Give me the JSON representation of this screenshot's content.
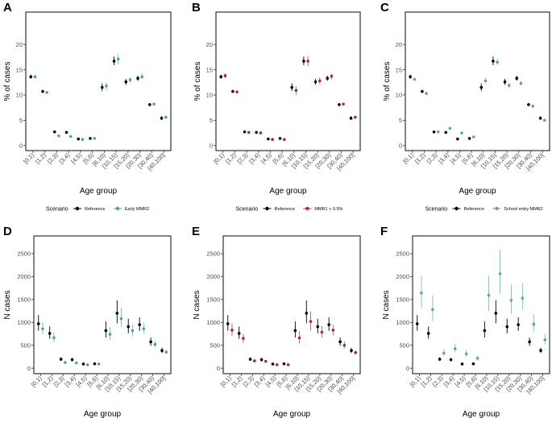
{
  "chart_data": [
    {
      "panel": "A",
      "type": "scatter",
      "subtype": "pointrange",
      "xlabel": "Age group",
      "ylabel": "% of cases",
      "categories": [
        "[0,1)",
        "[1,2)",
        "[2,3)",
        "[3,4)",
        "[4,5)",
        "[5,6)",
        "[6,10)",
        "[10,15)",
        "[15,20)",
        "[20,30)",
        "[30,40)",
        "[40,100]"
      ],
      "yticks": [
        0,
        5,
        10,
        15,
        20
      ],
      "ylim": [
        -1,
        26.4
      ],
      "legend": {
        "title": "Scenario",
        "position": "bottom"
      },
      "series": [
        {
          "name": "Reference",
          "color": "#000000",
          "values": [
            13.6,
            10.7,
            2.7,
            2.6,
            1.3,
            1.4,
            11.5,
            16.7,
            12.6,
            13.3,
            8.1,
            5.4
          ],
          "lower": [
            13.2,
            10.4,
            2.6,
            2.5,
            1.2,
            1.3,
            10.8,
            15.9,
            12.0,
            12.8,
            7.8,
            5.1
          ],
          "upper": [
            14.0,
            11.0,
            2.8,
            2.7,
            1.4,
            1.5,
            12.3,
            17.6,
            13.2,
            13.8,
            8.4,
            5.8
          ]
        },
        {
          "name": "Early MMR2",
          "color": "#4f9db3",
          "values": [
            13.6,
            10.5,
            1.9,
            1.8,
            1.2,
            1.4,
            11.8,
            17.1,
            13.0,
            13.6,
            8.2,
            5.6
          ],
          "lower": [
            13.2,
            10.2,
            1.8,
            1.7,
            1.1,
            1.3,
            10.9,
            16.1,
            12.4,
            13.1,
            7.9,
            5.3
          ],
          "upper": [
            14.0,
            10.8,
            2.0,
            1.9,
            1.3,
            1.5,
            12.5,
            18.1,
            13.6,
            14.2,
            8.5,
            5.9
          ]
        }
      ]
    },
    {
      "panel": "B",
      "type": "scatter",
      "subtype": "pointrange",
      "xlabel": "Age group",
      "ylabel": "% of cases",
      "categories": [
        "[0,1)",
        "[1,2)",
        "[2,3)",
        "[3,4)",
        "[4,5)",
        "[5,6)",
        "[6,10)",
        "[10,15)",
        "[15,20)",
        "[20,30)",
        "[30,40)",
        "[40,100]"
      ],
      "yticks": [
        0,
        5,
        10,
        15,
        20
      ],
      "ylim": [
        -1,
        26.4
      ],
      "legend": {
        "title": "Scenario",
        "position": "bottom"
      },
      "series": [
        {
          "name": "Reference",
          "color": "#000000",
          "values": [
            13.6,
            10.7,
            2.7,
            2.6,
            1.3,
            1.4,
            11.5,
            16.7,
            12.6,
            13.3,
            8.1,
            5.4
          ],
          "lower": [
            13.2,
            10.4,
            2.6,
            2.5,
            1.2,
            1.3,
            10.8,
            15.9,
            12.0,
            12.8,
            7.8,
            5.1
          ],
          "upper": [
            14.0,
            11.0,
            2.8,
            2.7,
            1.4,
            1.5,
            12.3,
            17.6,
            13.2,
            13.8,
            8.4,
            5.8
          ]
        },
        {
          "name": "MMR1 + 0.5%",
          "color": "#a8234d",
          "values": [
            13.8,
            10.6,
            2.6,
            2.5,
            1.2,
            1.2,
            10.9,
            16.7,
            12.8,
            13.7,
            8.2,
            5.6
          ],
          "lower": [
            13.3,
            10.3,
            2.5,
            2.4,
            1.1,
            1.1,
            10.0,
            15.7,
            12.1,
            13.1,
            7.9,
            5.3
          ],
          "upper": [
            14.3,
            10.9,
            2.7,
            2.6,
            1.3,
            1.3,
            11.7,
            17.7,
            13.5,
            14.2,
            8.5,
            5.9
          ]
        }
      ]
    },
    {
      "panel": "C",
      "type": "scatter",
      "subtype": "pointrange",
      "xlabel": "Age group",
      "ylabel": "% of cases",
      "categories": [
        "[0,1)",
        "[1,2)",
        "[2,3)",
        "[3,4)",
        "[4,5)",
        "[5,6)",
        "[6,10)",
        "[10,15)",
        "[15,20)",
        "[20,30)",
        "[30,40)",
        "[40,100]"
      ],
      "yticks": [
        0,
        5,
        10,
        15,
        20
      ],
      "ylim": [
        -1,
        26.4
      ],
      "legend": {
        "title": "Scenario",
        "position": "bottom"
      },
      "series": [
        {
          "name": "Reference",
          "color": "#000000",
          "values": [
            13.6,
            10.7,
            2.7,
            2.6,
            1.3,
            1.4,
            11.5,
            16.7,
            12.6,
            13.3,
            8.1,
            5.4
          ],
          "lower": [
            13.2,
            10.4,
            2.6,
            2.5,
            1.2,
            1.3,
            10.8,
            15.9,
            12.0,
            12.8,
            7.8,
            5.1
          ],
          "upper": [
            14.0,
            11.0,
            2.8,
            2.7,
            1.4,
            1.5,
            12.3,
            17.6,
            13.2,
            13.8,
            8.4,
            5.8
          ]
        },
        {
          "name": "School entry MMR2",
          "color": "#5fa88a",
          "values": [
            13.1,
            10.3,
            2.7,
            3.4,
            2.5,
            1.7,
            12.8,
            16.5,
            11.9,
            12.3,
            7.8,
            5.0
          ],
          "lower": [
            12.8,
            10.1,
            2.6,
            3.3,
            2.4,
            1.6,
            12.3,
            15.9,
            11.4,
            11.9,
            7.5,
            4.8
          ],
          "upper": [
            13.4,
            10.5,
            2.8,
            3.5,
            2.6,
            1.8,
            13.4,
            17.1,
            12.4,
            12.7,
            8.1,
            5.2
          ]
        }
      ]
    },
    {
      "panel": "D",
      "type": "scatter",
      "subtype": "pointrange",
      "xlabel": "Age group",
      "ylabel": "N cases",
      "categories": [
        "[0,1)",
        "[1,2)",
        "[2,3)",
        "[3,4)",
        "[4,5)",
        "[5,6)",
        "[6,10)",
        "[10,15)",
        "[15,20)",
        "[20,30)",
        "[30,40)",
        "[40,100]"
      ],
      "yticks": [
        0,
        500,
        1000,
        1500,
        2000,
        2500
      ],
      "ylim": [
        -120,
        2887
      ],
      "legend": {
        "title": "Scenario",
        "position": "bottom"
      },
      "series": [
        {
          "name": "Reference",
          "color": "#000000",
          "values": [
            970,
            760,
            195,
            185,
            90,
            95,
            820,
            1200,
            905,
            950,
            575,
            385
          ],
          "lower": [
            820,
            640,
            160,
            150,
            75,
            80,
            670,
            980,
            760,
            815,
            490,
            330
          ],
          "upper": [
            1160,
            910,
            235,
            225,
            105,
            110,
            1020,
            1480,
            1080,
            1110,
            670,
            445
          ]
        },
        {
          "name": "Early MMR2",
          "color": "#4f9db3",
          "values": [
            860,
            665,
            125,
            115,
            75,
            90,
            740,
            1080,
            820,
            860,
            520,
            350
          ],
          "lower": [
            740,
            570,
            105,
            95,
            65,
            80,
            620,
            900,
            700,
            750,
            450,
            310
          ],
          "upper": [
            1000,
            780,
            150,
            140,
            90,
            100,
            900,
            1320,
            960,
            990,
            600,
            400
          ]
        }
      ]
    },
    {
      "panel": "E",
      "type": "scatter",
      "subtype": "pointrange",
      "xlabel": "Age group",
      "ylabel": "N cases",
      "categories": [
        "[0,1)",
        "[1,2)",
        "[2,3)",
        "[3,4)",
        "[4,5)",
        "[5,6)",
        "[6,10)",
        "[10,15)",
        "[15,20)",
        "[20,30)",
        "[30,40)",
        "[40,100]"
      ],
      "yticks": [
        0,
        500,
        1000,
        1500,
        2000,
        2500
      ],
      "ylim": [
        -120,
        2887
      ],
      "legend": {
        "title": "Scenario",
        "position": "bottom"
      },
      "series": [
        {
          "name": "Reference",
          "color": "#000000",
          "values": [
            970,
            760,
            195,
            185,
            90,
            95,
            820,
            1200,
            905,
            950,
            575,
            385
          ],
          "lower": [
            820,
            640,
            160,
            150,
            75,
            80,
            670,
            980,
            760,
            815,
            490,
            330
          ],
          "upper": [
            1160,
            910,
            235,
            225,
            105,
            110,
            1020,
            1480,
            1080,
            1110,
            670,
            445
          ]
        },
        {
          "name": "MMR1 + 0.5%",
          "color": "#a8234d",
          "values": [
            830,
            650,
            160,
            150,
            75,
            75,
            660,
            1020,
            785,
            830,
            500,
            340
          ],
          "lower": [
            700,
            550,
            135,
            125,
            60,
            60,
            530,
            820,
            660,
            710,
            430,
            300
          ],
          "upper": [
            980,
            750,
            190,
            180,
            90,
            90,
            810,
            1240,
            920,
            950,
            580,
            390
          ]
        }
      ]
    },
    {
      "panel": "F",
      "type": "scatter",
      "subtype": "pointrange",
      "xlabel": "Age group",
      "ylabel": "N cases",
      "categories": [
        "[0,1)",
        "[1,2)",
        "[2,3)",
        "[3,4)",
        "[4,5)",
        "[5,6)",
        "[6,10)",
        "[10,15)",
        "[15,20)",
        "[20,30)",
        "[30,40)",
        "[40,100]"
      ],
      "yticks": [
        0,
        500,
        1000,
        1500,
        2000,
        2500
      ],
      "ylim": [
        -120,
        2887
      ],
      "legend": {
        "title": "Scenario",
        "position": "bottom"
      },
      "series": [
        {
          "name": "Reference",
          "color": "#000000",
          "values": [
            970,
            760,
            195,
            185,
            90,
            95,
            820,
            1200,
            905,
            950,
            575,
            385
          ],
          "lower": [
            820,
            640,
            160,
            150,
            75,
            80,
            670,
            980,
            760,
            815,
            490,
            330
          ],
          "upper": [
            1160,
            910,
            235,
            225,
            105,
            110,
            1020,
            1480,
            1080,
            1110,
            670,
            445
          ]
        },
        {
          "name": "School entry MMR2",
          "color": "#5fa88a",
          "values": [
            1640,
            1280,
            330,
            425,
            310,
            215,
            1590,
            2060,
            1480,
            1530,
            960,
            620
          ],
          "lower": [
            1320,
            1030,
            270,
            340,
            250,
            170,
            1250,
            1620,
            1190,
            1270,
            790,
            510
          ],
          "upper": [
            2020,
            1590,
            410,
            530,
            390,
            270,
            2010,
            2590,
            1830,
            1860,
            1180,
            750
          ]
        }
      ]
    }
  ]
}
